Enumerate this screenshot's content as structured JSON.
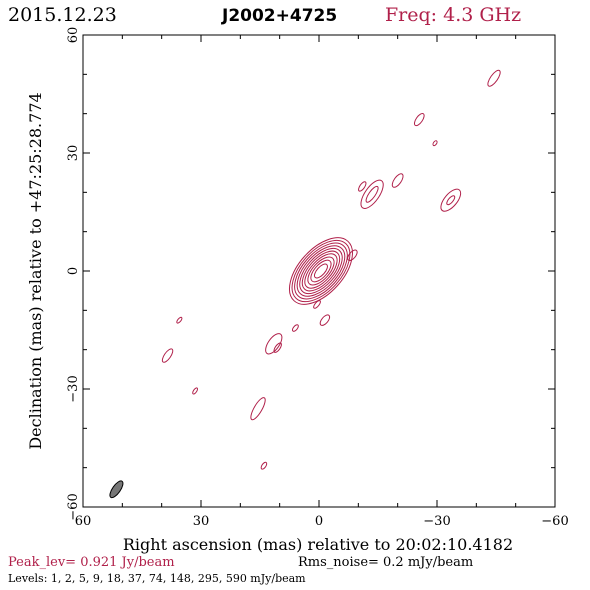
{
  "header": {
    "date": "2015.12.23",
    "source": "J2002+4725",
    "freq": "Freq: 4.3 GHz"
  },
  "colors": {
    "contour": "#b0204a",
    "accent": "#b0204a",
    "beam_fill": "#777777"
  },
  "footer": {
    "peak": "Peak_lev=  0.921 Jy/beam",
    "noise": "Rms_noise=  0.2 mJy/beam",
    "levels": "Levels:   1,    2,    5,    9,   18,   37,   74,  148,  295,  590 mJy/beam"
  },
  "chart_data": {
    "type": "contour",
    "xlabel": "Right ascension (mas) relative to 20:02:10.4182",
    "ylabel": "Declination (mas) relative to +47:25:28.774",
    "xlim": [
      60,
      -60
    ],
    "ylim": [
      -60,
      60
    ],
    "xticks": [
      60,
      30,
      0,
      -30,
      -60
    ],
    "yticks": [
      60,
      30,
      0,
      -30,
      -60
    ],
    "xtick_labels": [
      "60",
      "30",
      "0",
      "−30",
      "−60"
    ],
    "ytick_labels": [
      "60",
      "30",
      "0",
      "−30",
      "−60"
    ],
    "minor_step": 10,
    "core": {
      "x": -0.5,
      "y": 0,
      "pa_deg": 48,
      "levels_mJy": [
        1,
        2,
        5,
        9,
        18,
        37,
        74,
        148,
        295,
        590
      ],
      "semi_major": [
        10.2,
        9.4,
        8.6,
        7.8,
        7.0,
        6.2,
        5.4,
        4.4,
        3.4,
        2.2
      ],
      "semi_minor": [
        5.6,
        5.1,
        4.6,
        4.1,
        3.6,
        3.1,
        2.6,
        2.1,
        1.6,
        1.0
      ]
    },
    "components": [
      {
        "x": -44.5,
        "y": 49,
        "a": 2.4,
        "b": 0.9,
        "pa": 55
      },
      {
        "x": -25.5,
        "y": 38.5,
        "a": 1.8,
        "b": 0.8,
        "pa": 55
      },
      {
        "x": -29.5,
        "y": 32.5,
        "a": 0.7,
        "b": 0.4,
        "pa": 55
      },
      {
        "x": -20,
        "y": 23,
        "a": 2.0,
        "b": 0.9,
        "pa": 55
      },
      {
        "x": -13.5,
        "y": 19.5,
        "a": 4.2,
        "b": 1.8,
        "pa": 55
      },
      {
        "x": -13.5,
        "y": 19.5,
        "a": 2.4,
        "b": 0.8,
        "pa": 55
      },
      {
        "x": -11,
        "y": 21.5,
        "a": 1.4,
        "b": 0.6,
        "pa": 55
      },
      {
        "x": -33.5,
        "y": 18,
        "a": 3.4,
        "b": 1.6,
        "pa": 50
      },
      {
        "x": -33.5,
        "y": 18,
        "a": 1.4,
        "b": 0.6,
        "pa": 50
      },
      {
        "x": -8.5,
        "y": 4,
        "a": 1.6,
        "b": 0.8,
        "pa": 50
      },
      {
        "x": 0.5,
        "y": -8.5,
        "a": 1.2,
        "b": 0.5,
        "pa": 50
      },
      {
        "x": -1.5,
        "y": -12.5,
        "a": 1.6,
        "b": 0.8,
        "pa": 50
      },
      {
        "x": 6,
        "y": -14.5,
        "a": 1.0,
        "b": 0.5,
        "pa": 50
      },
      {
        "x": 11.5,
        "y": -18.5,
        "a": 3.0,
        "b": 1.4,
        "pa": 55
      },
      {
        "x": 10.5,
        "y": -19.5,
        "a": 1.4,
        "b": 0.6,
        "pa": 55
      },
      {
        "x": 35.5,
        "y": -12.5,
        "a": 0.9,
        "b": 0.4,
        "pa": 50
      },
      {
        "x": 38.5,
        "y": -21.5,
        "a": 2.0,
        "b": 0.8,
        "pa": 55
      },
      {
        "x": 31.5,
        "y": -30.5,
        "a": 0.9,
        "b": 0.4,
        "pa": 55
      },
      {
        "x": 15.5,
        "y": -35,
        "a": 3.2,
        "b": 1.0,
        "pa": 60
      },
      {
        "x": 14,
        "y": -49.5,
        "a": 1.0,
        "b": 0.5,
        "pa": 55
      }
    ],
    "beam": {
      "x": 51.5,
      "y": -55.5,
      "a": 2.5,
      "b": 1.0,
      "pa": 55
    }
  }
}
